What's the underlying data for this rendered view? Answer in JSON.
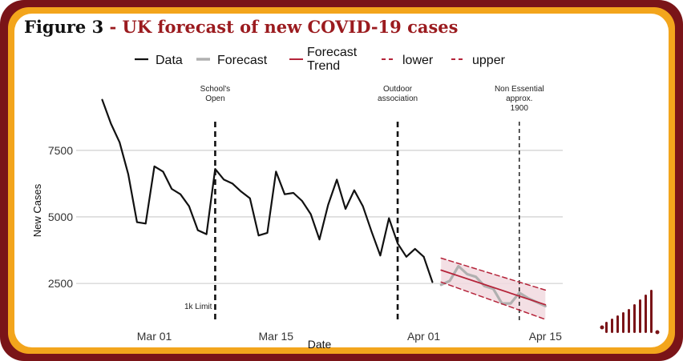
{
  "figure": {
    "label": "Figure 3",
    "separator": " - ",
    "title": "UK forecast of new COVID-19 cases"
  },
  "colors": {
    "frame_outer": "#7a1418",
    "frame_mid": "#f3a51c",
    "data": "#111111",
    "forecast": "#b0b0b0",
    "trend": "#b5243a",
    "band": "#f1d9df",
    "grid": "#d4d4d4"
  },
  "chart_data": {
    "type": "line",
    "xlabel": "Date",
    "ylabel": "New Cases",
    "xticks": [
      "Mar 01",
      "Mar 15",
      "Apr 01",
      "Apr 15"
    ],
    "yticks": [
      "2500",
      "5000",
      "7500"
    ],
    "xlim": [
      "2020-02-21",
      "2020-04-17"
    ],
    "ylim": [
      1000,
      10200
    ],
    "grid": "horizontal",
    "legend": {
      "position": "top",
      "entries": [
        {
          "label": "Data",
          "style": "solid-black"
        },
        {
          "label": "Forecast",
          "style": "solid-grey"
        },
        {
          "label": "Forecast Trend",
          "style": "solid-red"
        },
        {
          "label": "lower",
          "style": "dashed-red"
        },
        {
          "label": "upper",
          "style": "dashed-red"
        }
      ]
    },
    "series": [
      {
        "name": "Data",
        "x": [
          "2020-02-24",
          "2020-02-25",
          "2020-02-26",
          "2020-02-27",
          "2020-02-28",
          "2020-02-29",
          "2020-03-01",
          "2020-03-02",
          "2020-03-03",
          "2020-03-04",
          "2020-03-05",
          "2020-03-06",
          "2020-03-07",
          "2020-03-08",
          "2020-03-09",
          "2020-03-10",
          "2020-03-11",
          "2020-03-12",
          "2020-03-13",
          "2020-03-14",
          "2020-03-15",
          "2020-03-16",
          "2020-03-17",
          "2020-03-18",
          "2020-03-19",
          "2020-03-20",
          "2020-03-21",
          "2020-03-22",
          "2020-03-23",
          "2020-03-24",
          "2020-03-25",
          "2020-03-26",
          "2020-03-27",
          "2020-03-28",
          "2020-03-29",
          "2020-03-30",
          "2020-03-31",
          "2020-04-01"
        ],
        "values": [
          9400,
          8500,
          7800,
          6600,
          4800,
          4750,
          6900,
          6700,
          6050,
          5850,
          5400,
          4500,
          4350,
          6800,
          6400,
          6250,
          5950,
          5700,
          4300,
          4400,
          6700,
          5850,
          5900,
          5600,
          5100,
          4150,
          5450,
          6400,
          5300,
          6000,
          5400,
          4450,
          3550,
          4950,
          4000,
          3500,
          3800,
          3500
        ]
      },
      {
        "name": "Data",
        "x": [
          "2020-04-01",
          "2020-04-02"
        ],
        "values": [
          3500,
          2550
        ]
      },
      {
        "name": "Forecast",
        "x": [
          "2020-04-03",
          "2020-04-04",
          "2020-04-05",
          "2020-04-06",
          "2020-04-07",
          "2020-04-08",
          "2020-04-09",
          "2020-04-10",
          "2020-04-11",
          "2020-04-12",
          "2020-04-13",
          "2020-04-14",
          "2020-04-15"
        ],
        "values": [
          2450,
          2600,
          3150,
          2850,
          2750,
          2400,
          2300,
          1750,
          1750,
          2150,
          1950,
          1800,
          1650
        ]
      },
      {
        "name": "Forecast Trend",
        "x": [
          "2020-04-03",
          "2020-04-15"
        ],
        "values": [
          3000,
          1700
        ]
      },
      {
        "name": "lower",
        "x": [
          "2020-04-03",
          "2020-04-15"
        ],
        "values": [
          2550,
          1150
        ]
      },
      {
        "name": "upper",
        "x": [
          "2020-04-03",
          "2020-04-15"
        ],
        "values": [
          3450,
          2250
        ]
      }
    ],
    "annotations": [
      {
        "x": "2020-03-08",
        "lines": [
          "School's",
          "Open"
        ],
        "label_position": "top"
      },
      {
        "x": "2020-03-08",
        "lines": [
          "1k Limit"
        ],
        "label_position": "bottom"
      },
      {
        "x": "2020-03-29",
        "lines": [
          "Outdoor",
          "association"
        ],
        "label_position": "top"
      },
      {
        "x": "2020-04-12",
        "lines": [
          "Non Essential",
          "approx.",
          "1900"
        ],
        "label_position": "top"
      }
    ]
  }
}
